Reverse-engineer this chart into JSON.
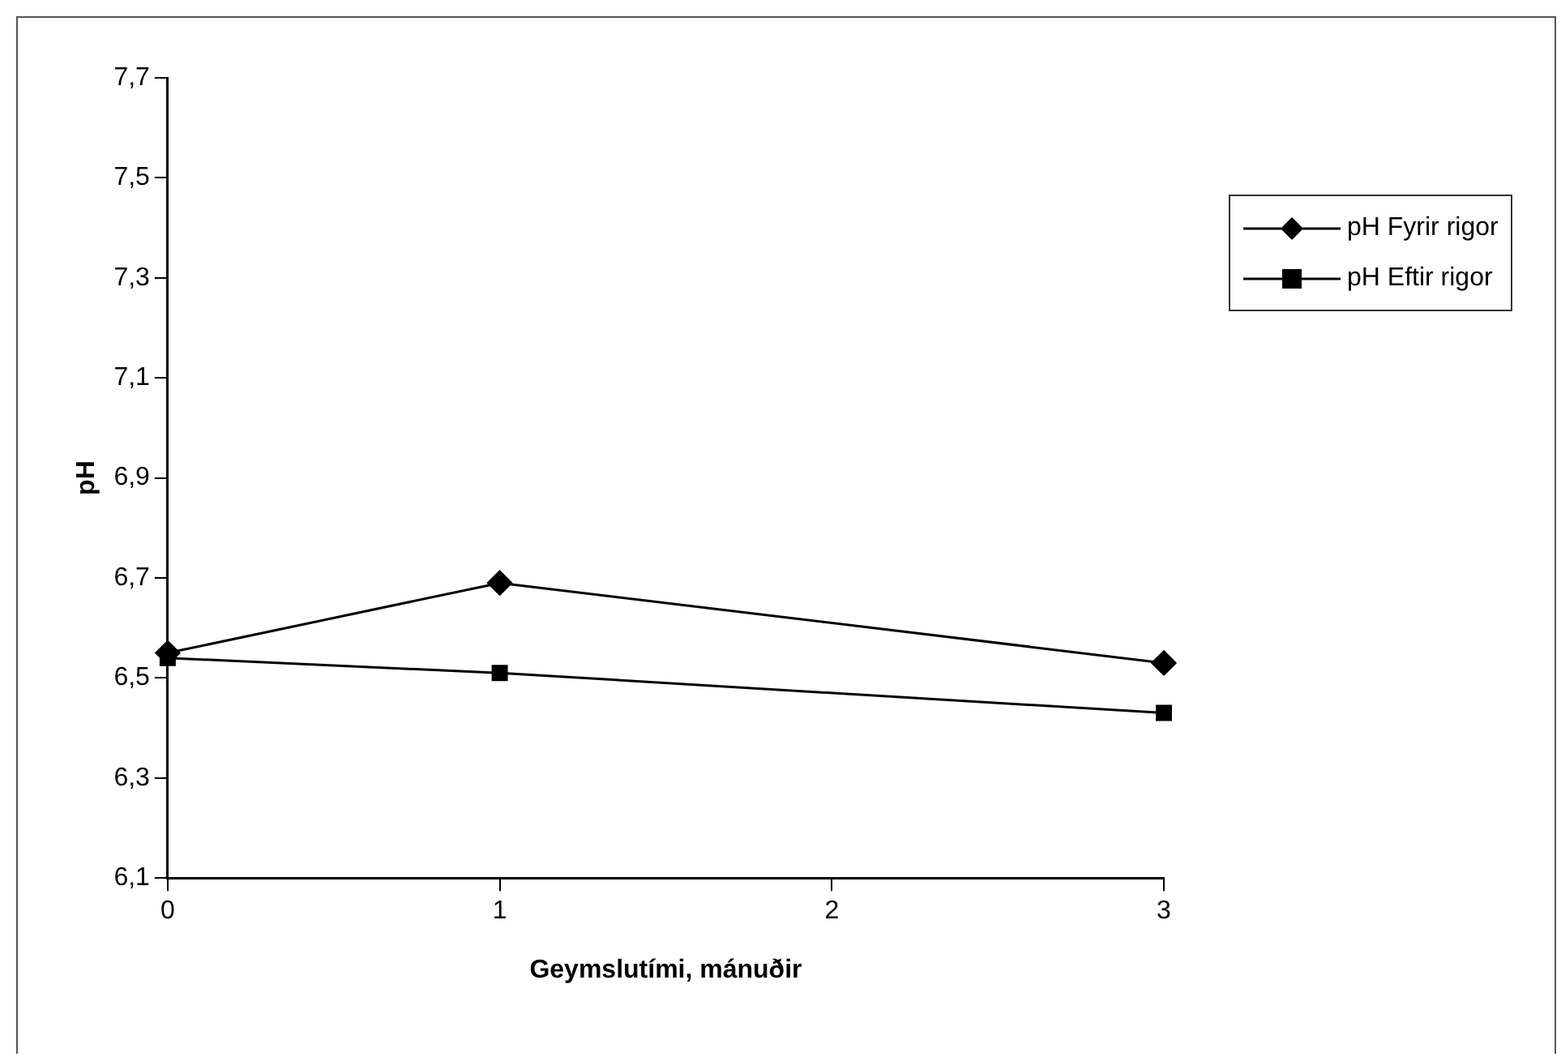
{
  "chart_data": {
    "type": "line",
    "xlabel": "Geymslutími, mánuðir",
    "ylabel": "pH",
    "x": [
      0,
      1,
      3
    ],
    "series": [
      {
        "name": "pH Fyrir rigor",
        "color": "#000000",
        "marker": "diamond",
        "values": [
          6.55,
          6.69,
          6.53
        ]
      },
      {
        "name": "pH Eftir rigor",
        "color": "#000000",
        "marker": "square",
        "values": [
          6.54,
          6.51,
          6.43
        ]
      }
    ],
    "xlim": [
      0,
      3
    ],
    "xticks": [
      0,
      1,
      2,
      3
    ],
    "ylim": [
      6.1,
      7.7
    ],
    "yticks": [
      {
        "value": 6.1,
        "label": "6,1"
      },
      {
        "value": 6.3,
        "label": "6,3"
      },
      {
        "value": 6.5,
        "label": "6,5"
      },
      {
        "value": 6.7,
        "label": "6,7"
      },
      {
        "value": 6.9,
        "label": "6,9"
      },
      {
        "value": 7.1,
        "label": "7,1"
      },
      {
        "value": 7.3,
        "label": "7,3"
      },
      {
        "value": 7.5,
        "label": "7,5"
      },
      {
        "value": 7.7,
        "label": "7,7"
      }
    ],
    "grid": false,
    "legend": "right",
    "line_style": "solid"
  }
}
